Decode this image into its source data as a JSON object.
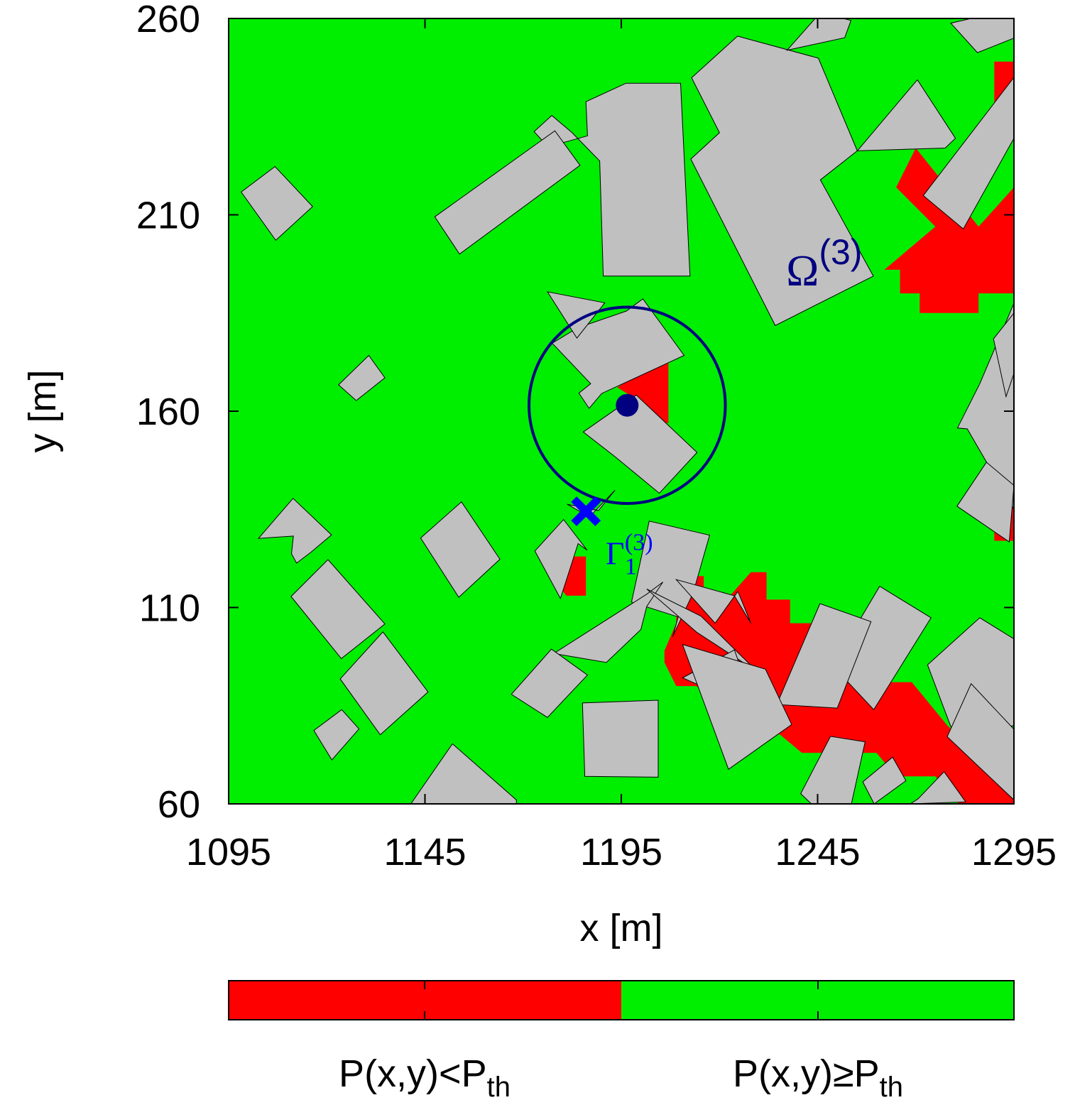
{
  "chart_data": {
    "type": "heatmap",
    "xlabel": "x [m]",
    "ylabel": "y [m]",
    "xlim": [
      1095,
      1295
    ],
    "ylim": [
      60,
      260
    ],
    "xticks": [
      1095,
      1145,
      1195,
      1245,
      1295
    ],
    "yticks": [
      60,
      110,
      160,
      210,
      260
    ],
    "grid": false,
    "colors": {
      "below": "#ff0000",
      "above": "#00ee00",
      "building": "#c0c0c0",
      "annotation": "#000080",
      "point": "#0000ff"
    },
    "legend": {
      "placement": "bottom colorbar",
      "below_label": {
        "main": "P(x,y)<P",
        "sub": "th"
      },
      "above_label": {
        "main": "P(x,y)≥P",
        "sub": "th"
      }
    },
    "buildings": [
      [
        [
          1224.6,
          255.5
        ],
        [
          1245.2,
          249.9
        ],
        [
          1255.1,
          226.3
        ],
        [
          1245.7,
          218.9
        ],
        [
          1259.2,
          194.4
        ],
        [
          1234.2,
          181.8
        ],
        [
          1212.7,
          224.2
        ],
        [
          1220.0,
          230.9
        ],
        [
          1212.9,
          244.9
        ]
      ],
      [
        [
          1176.3,
          227.3
        ],
        [
          1186.4,
          230.1
        ],
        [
          1186.0,
          238.8
        ],
        [
          1196.2,
          243.5
        ],
        [
          1210.1,
          243.5
        ],
        [
          1212.5,
          194.4
        ],
        [
          1190.4,
          194.4
        ],
        [
          1189.5,
          223.7
        ],
        [
          1182.4,
          231.0
        ],
        [
          1177.3,
          235.3
        ],
        [
          1172.8,
          231.2
        ]
      ],
      [
        [
          1255.1,
          226.3
        ],
        [
          1270.4,
          244.4
        ],
        [
          1280.1,
          229.5
        ],
        [
          1277.5,
          227.0
        ]
      ],
      [
        [
          1271.9,
          214.9
        ],
        [
          1282.1,
          206.4
        ],
        [
          1295.0,
          229.5
        ],
        [
          1295.0,
          245.0
        ]
      ],
      [
        [
          1147.5,
          209.5
        ],
        [
          1178.1,
          231.4
        ],
        [
          1184.5,
          222.6
        ],
        [
          1153.8,
          200.0
        ]
      ],
      [
        [
          1098.2,
          215.8
        ],
        [
          1106.8,
          222.3
        ],
        [
          1116.4,
          212.1
        ],
        [
          1107.0,
          203.5
        ]
      ],
      [
        [
          1245.7,
          261.5
        ],
        [
          1253.5,
          259.5
        ],
        [
          1251.9,
          255.1
        ],
        [
          1237.2,
          251.9
        ]
      ],
      [
        [
          1278.9,
          258.8
        ],
        [
          1285.7,
          251.3
        ],
        [
          1295.0,
          255.0
        ],
        [
          1295.0,
          262.5
        ]
      ],
      [
        [
          1177.4,
          177.3
        ],
        [
          1187.2,
          167.0
        ],
        [
          1184.2,
          164.6
        ],
        [
          1186.8,
          160.7
        ],
        [
          1190.0,
          164.5
        ],
        [
          1211.0,
          174.2
        ],
        [
          1200.5,
          188.6
        ],
        [
          1196.3,
          185.5
        ],
        [
          1183.8,
          181.2
        ]
      ],
      [
        [
          1185.3,
          154.7
        ],
        [
          1198.8,
          164.1
        ],
        [
          1214.3,
          149.5
        ],
        [
          1204.7,
          139.1
        ],
        [
          1193.4,
          148.4
        ]
      ],
      [
        [
          1176.2,
          190.4
        ],
        [
          1183.7,
          178.6
        ],
        [
          1190.8,
          187.6
        ]
      ],
      [
        [
          1280.6,
          155.7
        ],
        [
          1286.3,
          167.0
        ],
        [
          1295.0,
          187.5
        ],
        [
          1295.0,
          135.0
        ],
        [
          1283.1,
          155.5
        ]
      ],
      [
        [
          1123.0,
          166.7
        ],
        [
          1127.5,
          162.7
        ],
        [
          1134.8,
          168.5
        ],
        [
          1130.7,
          174.2
        ]
      ],
      [
        [
          1102.6,
          127.6
        ],
        [
          1111.4,
          137.8
        ],
        [
          1121.2,
          128.5
        ],
        [
          1116.0,
          124.1
        ],
        [
          1112.3,
          121.3
        ],
        [
          1111.0,
          123.7
        ],
        [
          1111.5,
          128.2
        ]
      ],
      [
        [
          1143.9,
          127.7
        ],
        [
          1154.3,
          136.9
        ],
        [
          1164.1,
          122.3
        ],
        [
          1153.6,
          112.6
        ]
      ],
      [
        [
          1197.6,
          111.4
        ],
        [
          1209.5,
          107.6
        ],
        [
          1208.1,
          102.6
        ],
        [
          1213.3,
          113.7
        ],
        [
          1217.5,
          128.4
        ],
        [
          1202.1,
          132.0
        ]
      ],
      [
        [
          1201.5,
          113.4
        ],
        [
          1205.6,
          116.5
        ],
        [
          1205.6,
          116.5
        ],
        [
          1201.5,
          110.3
        ],
        [
          1200.0,
          104.4
        ],
        [
          1191.2,
          96.0
        ],
        [
          1177.8,
          98.3
        ]
      ],
      [
        [
          1173.0,
          124.4
        ],
        [
          1180.3,
          132.4
        ],
        [
          1186.3,
          124.6
        ],
        [
          1184.0,
          126.3
        ],
        [
          1179.5,
          112.3
        ]
      ],
      [
        [
          1181.2,
          136.3
        ],
        [
          1189.2,
          134.7
        ],
        [
          1193.4,
          139.9
        ],
        [
          1186.9,
          133.1
        ]
      ],
      [
        [
          1110.9,
          112.8
        ],
        [
          1120.3,
          122.2
        ],
        [
          1134.8,
          105.8
        ],
        [
          1123.7,
          97.0
        ]
      ],
      [
        [
          1123.4,
          91.8
        ],
        [
          1134.3,
          103.8
        ],
        [
          1145.8,
          88.5
        ],
        [
          1133.6,
          77.6
        ]
      ],
      [
        [
          1116.7,
          78.7
        ],
        [
          1123.8,
          84.0
        ],
        [
          1128.2,
          79.1
        ],
        [
          1121.3,
          71.2
        ]
      ],
      [
        [
          1167.0,
          87.9
        ],
        [
          1177.2,
          99.4
        ],
        [
          1186.4,
          92.8
        ],
        [
          1176.2,
          82.0
        ]
      ],
      [
        [
          1185.1,
          85.7
        ],
        [
          1185.7,
          67.0
        ],
        [
          1204.4,
          66.8
        ],
        [
          1204.4,
          86.4
        ]
      ],
      [
        [
          1201.5,
          114.7
        ],
        [
          1214.2,
          103.7
        ],
        [
          1229.7,
          93.6
        ],
        [
          1215.3,
          107.8
        ]
      ],
      [
        [
          1218.9,
          106.0
        ],
        [
          1224.7,
          114.1
        ],
        [
          1228.0,
          106.0
        ],
        [
          1223.8,
          113.0
        ],
        [
          1209.0,
          117.1
        ]
      ],
      [
        [
          1210.6,
          92.1
        ],
        [
          1223.8,
          99.2
        ],
        [
          1230.9,
          79.4
        ],
        [
          1220.0,
          87.9
        ]
      ],
      [
        [
          1248.8,
          95.2
        ],
        [
          1260.8,
          115.4
        ],
        [
          1273.9,
          107.4
        ],
        [
          1259.3,
          84.0
        ]
      ],
      [
        [
          1234.6,
          85.3
        ],
        [
          1245.6,
          111.0
        ],
        [
          1258.6,
          106.4
        ],
        [
          1250.0,
          84.4
        ]
      ],
      [
        [
          1273.0,
          95.4
        ],
        [
          1286.3,
          107.4
        ],
        [
          1295.0,
          102.0
        ],
        [
          1295.0,
          80.0
        ],
        [
          1280.6,
          75.2
        ]
      ],
      [
        [
          1278.0,
          77.1
        ],
        [
          1284.1,
          90.6
        ],
        [
          1295.0,
          79.0
        ],
        [
          1295.0,
          61.0
        ]
      ],
      [
        [
          1210.6,
          100.6
        ],
        [
          1231.7,
          94.3
        ],
        [
          1238.4,
          80.2
        ],
        [
          1222.3,
          68.8
        ]
      ],
      [
        [
          1240.7,
          62.6
        ],
        [
          1248.3,
          77.2
        ],
        [
          1257.1,
          75.8
        ],
        [
          1253.6,
          60.0
        ],
        [
          1243.4,
          60.0
        ]
      ],
      [
        [
          1270.6,
          61.3
        ],
        [
          1277.2,
          68.2
        ],
        [
          1282.7,
          60.5
        ],
        [
          1268.6,
          60.0
        ]
      ],
      [
        [
          1256.5,
          65.6
        ],
        [
          1264.1,
          71.9
        ],
        [
          1267.5,
          65.9
        ],
        [
          1259.4,
          60.0
        ]
      ],
      [
        [
          1141.4,
          60.0
        ],
        [
          1152.0,
          75.3
        ],
        [
          1168.3,
          61.0
        ],
        [
          1168.3,
          60.0
        ]
      ],
      [
        [
          1289.8,
          178.4
        ],
        [
          1295.0,
          185.0
        ],
        [
          1295.0,
          169.6
        ],
        [
          1293.0,
          163.7
        ]
      ],
      [
        [
          1280.5,
          135.8
        ],
        [
          1293.8,
          126.7
        ],
        [
          1295.0,
          141.1
        ],
        [
          1288.0,
          147.0
        ]
      ]
    ],
    "below_threshold_regions": [
      [
        [
          1207.0,
          175.0
        ],
        [
          1207.0,
          157.0
        ],
        [
          1199.0,
          157.0
        ],
        [
          1199.0,
          163.0
        ],
        [
          1194.0,
          166.0
        ]
      ],
      [
        [
          1186.0,
          123.0
        ],
        [
          1186.0,
          113.0
        ],
        [
          1181.0,
          113.0
        ],
        [
          1178.0,
          117.0
        ],
        [
          1181.0,
          123.0
        ]
      ],
      [
        [
          1209.0,
          118.0
        ],
        [
          1216.0,
          118.0
        ],
        [
          1216.0,
          110.0
        ],
        [
          1220.0,
          110.0
        ],
        [
          1228.0,
          119.0
        ],
        [
          1232.0,
          119.0
        ],
        [
          1232.0,
          112.0
        ],
        [
          1238.0,
          112.0
        ],
        [
          1238.0,
          106.0
        ],
        [
          1260.0,
          106.0
        ],
        [
          1260.0,
          91.0
        ],
        [
          1269.0,
          91.0
        ],
        [
          1278.0,
          80.0
        ],
        [
          1282.0,
          76.0
        ],
        [
          1295.0,
          67.0
        ],
        [
          1295.0,
          60.0
        ],
        [
          1281.0,
          60.0
        ],
        [
          1275.0,
          67.0
        ],
        [
          1265.0,
          67.0
        ],
        [
          1260.0,
          73.0
        ],
        [
          1241.0,
          73.0
        ],
        [
          1235.0,
          78.0
        ],
        [
          1230.0,
          78.0
        ],
        [
          1225.0,
          84.0
        ],
        [
          1214.0,
          90.0
        ],
        [
          1209.0,
          90.0
        ],
        [
          1206.0,
          96.0
        ],
        [
          1206.0,
          99.0
        ],
        [
          1209.0,
          106.0
        ]
      ],
      [
        [
          1270.0,
          227.0
        ],
        [
          1286.0,
          207.0
        ],
        [
          1295.0,
          217.0
        ],
        [
          1295.0,
          190.0
        ],
        [
          1286.0,
          190.0
        ],
        [
          1286.0,
          185.0
        ],
        [
          1271.0,
          185.0
        ],
        [
          1271.0,
          190.0
        ],
        [
          1266.0,
          190.0
        ],
        [
          1266.0,
          196.0
        ],
        [
          1262.0,
          196.0
        ],
        [
          1275.0,
          207.0
        ],
        [
          1265.0,
          217.0
        ]
      ],
      [
        [
          1290.0,
          249.0
        ],
        [
          1295.0,
          249.0
        ],
        [
          1295.0,
          238.0
        ],
        [
          1290.0,
          238.0
        ]
      ],
      [
        [
          1290.0,
          137.0
        ],
        [
          1295.0,
          137.0
        ],
        [
          1295.0,
          127.0
        ],
        [
          1290.0,
          127.0
        ]
      ]
    ],
    "annotations": [
      {
        "kind": "circle",
        "label": "Ω",
        "superscript": "(3)",
        "center": [
          1196.5,
          161.5
        ],
        "radius": 25.0,
        "label_at": [
          1237.0,
          192.0
        ]
      },
      {
        "kind": "point",
        "label": "",
        "at": [
          1196.5,
          161.5
        ]
      },
      {
        "kind": "marker",
        "label": "Γ",
        "subscript": "1",
        "superscript": "(3)",
        "at": [
          1186.0,
          134.5
        ],
        "label_at": [
          1191.0,
          121.0
        ]
      }
    ]
  }
}
